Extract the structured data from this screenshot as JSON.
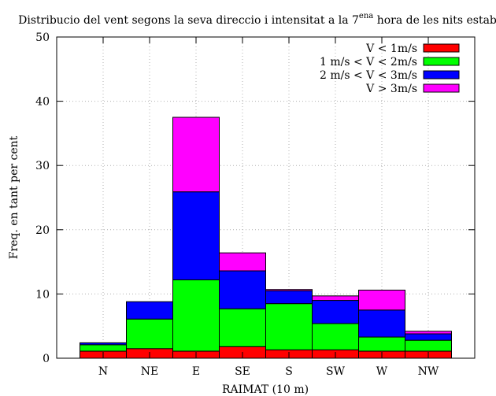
{
  "chart_data": {
    "type": "bar",
    "stacked": true,
    "title": {
      "main": "Distribucio del vent segons la seva direccio i intensitat a la 7",
      "sup": "ena",
      "rest": " hora de les nits estables"
    },
    "xlabel": "RAIMAT (10 m)",
    "ylabel": "Freq. en tant per cent",
    "ylim": [
      0,
      50
    ],
    "yticks": [
      0,
      10,
      20,
      30,
      40,
      50
    ],
    "grid": true,
    "legend_position": "top-right",
    "categories": [
      "N",
      "NE",
      "E",
      "SE",
      "S",
      "SW",
      "W",
      "NW"
    ],
    "series": [
      {
        "name": "V < 1m/s",
        "color": "#ff0000",
        "values": [
          1.1,
          1.5,
          1.1,
          1.8,
          1.3,
          1.3,
          1.1,
          1.1
        ]
      },
      {
        "name": "1 m/s < V < 2m/s",
        "color": "#00ff00",
        "values": [
          1.0,
          4.6,
          11.1,
          5.9,
          7.2,
          4.1,
          2.2,
          1.7
        ]
      },
      {
        "name": "2 m/s < V < 3m/s",
        "color": "#0000ff",
        "values": [
          0.3,
          2.7,
          13.7,
          5.9,
          2.0,
          3.6,
          4.2,
          1.0
        ]
      },
      {
        "name": "V > 3m/s",
        "color": "#ff00ff",
        "values": [
          0.0,
          0.0,
          11.6,
          2.8,
          0.2,
          0.7,
          3.1,
          0.4
        ]
      }
    ]
  }
}
